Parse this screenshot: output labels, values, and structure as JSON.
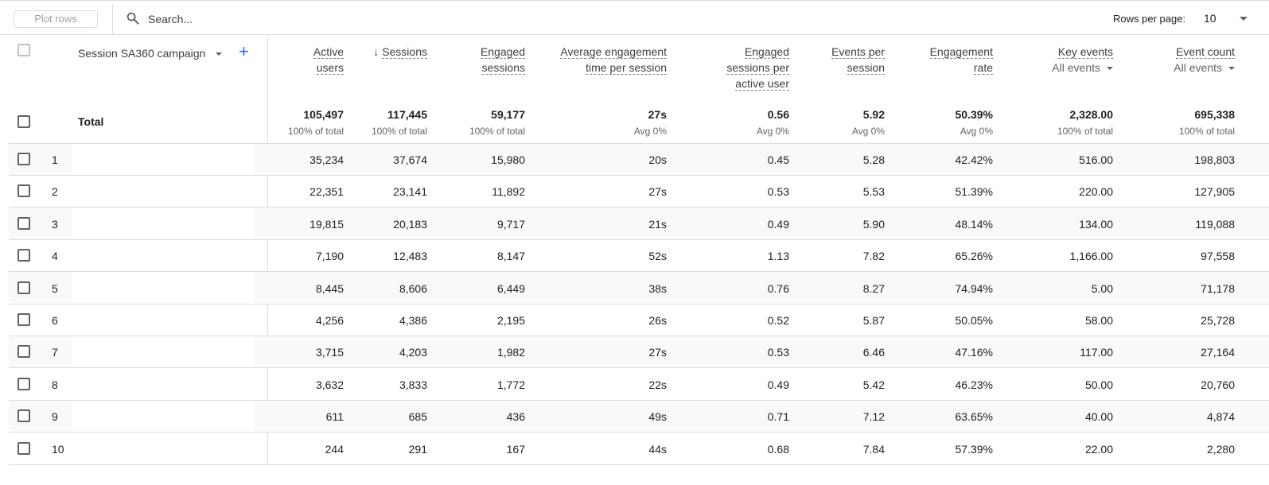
{
  "toolbar": {
    "plot_rows_label": "Plot rows",
    "search_placeholder": "Search...",
    "rows_per_page_label": "Rows per page:",
    "rows_per_page_value": "10"
  },
  "table": {
    "dimension_header": "Session SA360 campaign",
    "total_label": "Total",
    "columns": [
      {
        "label": "Active users",
        "total": "105,497",
        "total_sub": "100% of total"
      },
      {
        "label": "Sessions",
        "total": "117,445",
        "total_sub": "100% of total"
      },
      {
        "label": "Engaged sessions",
        "total": "59,177",
        "total_sub": "100% of total"
      },
      {
        "label": "Average engagement time per session",
        "total": "27s",
        "total_sub": "Avg 0%"
      },
      {
        "label": "Engaged sessions per active user",
        "total": "0.56",
        "total_sub": "Avg 0%"
      },
      {
        "label": "Events per session",
        "total": "5.92",
        "total_sub": "Avg 0%"
      },
      {
        "label": "Engagement rate",
        "total": "50.39%",
        "total_sub": "Avg 0%"
      },
      {
        "label": "Key events",
        "filter": "All events",
        "total": "2,328.00",
        "total_sub": "100% of total"
      },
      {
        "label": "Event count",
        "filter": "All events",
        "total": "695,338",
        "total_sub": "100% of total"
      }
    ],
    "rows": [
      {
        "num": "1",
        "cells": [
          "35,234",
          "37,674",
          "15,980",
          "20s",
          "0.45",
          "5.28",
          "42.42%",
          "516.00",
          "198,803"
        ]
      },
      {
        "num": "2",
        "cells": [
          "22,351",
          "23,141",
          "11,892",
          "27s",
          "0.53",
          "5.53",
          "51.39%",
          "220.00",
          "127,905"
        ]
      },
      {
        "num": "3",
        "cells": [
          "19,815",
          "20,183",
          "9,717",
          "21s",
          "0.49",
          "5.90",
          "48.14%",
          "134.00",
          "119,088"
        ]
      },
      {
        "num": "4",
        "cells": [
          "7,190",
          "12,483",
          "8,147",
          "52s",
          "1.13",
          "7.82",
          "65.26%",
          "1,166.00",
          "97,558"
        ]
      },
      {
        "num": "5",
        "cells": [
          "8,445",
          "8,606",
          "6,449",
          "38s",
          "0.76",
          "8.27",
          "74.94%",
          "5.00",
          "71,178"
        ]
      },
      {
        "num": "6",
        "cells": [
          "4,256",
          "4,386",
          "2,195",
          "26s",
          "0.52",
          "5.87",
          "50.05%",
          "58.00",
          "25,728"
        ]
      },
      {
        "num": "7",
        "cells": [
          "3,715",
          "4,203",
          "1,982",
          "27s",
          "0.53",
          "6.46",
          "47.16%",
          "117.00",
          "27,164"
        ]
      },
      {
        "num": "8",
        "cells": [
          "3,632",
          "3,833",
          "1,772",
          "22s",
          "0.49",
          "5.42",
          "46.23%",
          "50.00",
          "20,760"
        ]
      },
      {
        "num": "9",
        "cells": [
          "611",
          "685",
          "436",
          "49s",
          "0.71",
          "7.12",
          "63.65%",
          "40.00",
          "4,874"
        ]
      },
      {
        "num": "10",
        "cells": [
          "244",
          "291",
          "167",
          "44s",
          "0.68",
          "7.84",
          "57.39%",
          "22.00",
          "2,280"
        ]
      }
    ]
  }
}
